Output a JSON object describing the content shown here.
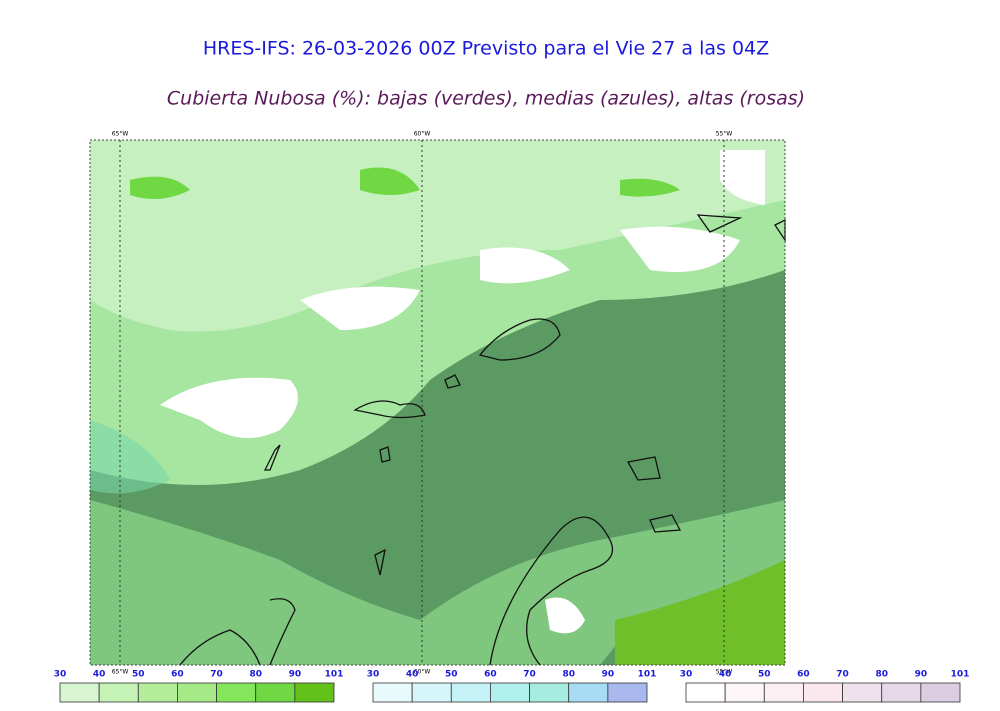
{
  "header": {
    "title": "HRES-IFS: 26-03-2026 00Z Previsto para el Vie 27 a las 04Z",
    "subtitle": "Cubierta Nubosa (%): bajas (verdes), medias (azules), altas (rosas)"
  },
  "map": {
    "lon_labels_top": [
      "65°W",
      "60°W",
      "55°W"
    ],
    "lon_labels_bottom": [
      "65°W",
      "60°W",
      "55°W"
    ]
  },
  "legends": [
    {
      "ticks": [
        "30",
        "40",
        "50",
        "60",
        "70",
        "80",
        "90",
        "101"
      ],
      "colors": [
        "#d7f5d0",
        "#c5f2b5",
        "#b4ee9c",
        "#a6ea87",
        "#84e65a",
        "#6fd843",
        "#63c21a"
      ]
    },
    {
      "ticks": [
        "30",
        "40",
        "50",
        "60",
        "70",
        "80",
        "90",
        "101"
      ],
      "colors": [
        "#e8fafc",
        "#d6f6fa",
        "#c4f2f6",
        "#b2f0ee",
        "#a6ecdf",
        "#a8dcf5",
        "#a9b8ee"
      ]
    },
    {
      "ticks": [
        "30",
        "40",
        "50",
        "60",
        "70",
        "80",
        "90",
        "101"
      ],
      "colors": [
        "#ffffff",
        "#fdf6f8",
        "#fbeff3",
        "#fae8ee",
        "#f0e2ec",
        "#e6d8e8",
        "#dccde0"
      ]
    }
  ]
}
